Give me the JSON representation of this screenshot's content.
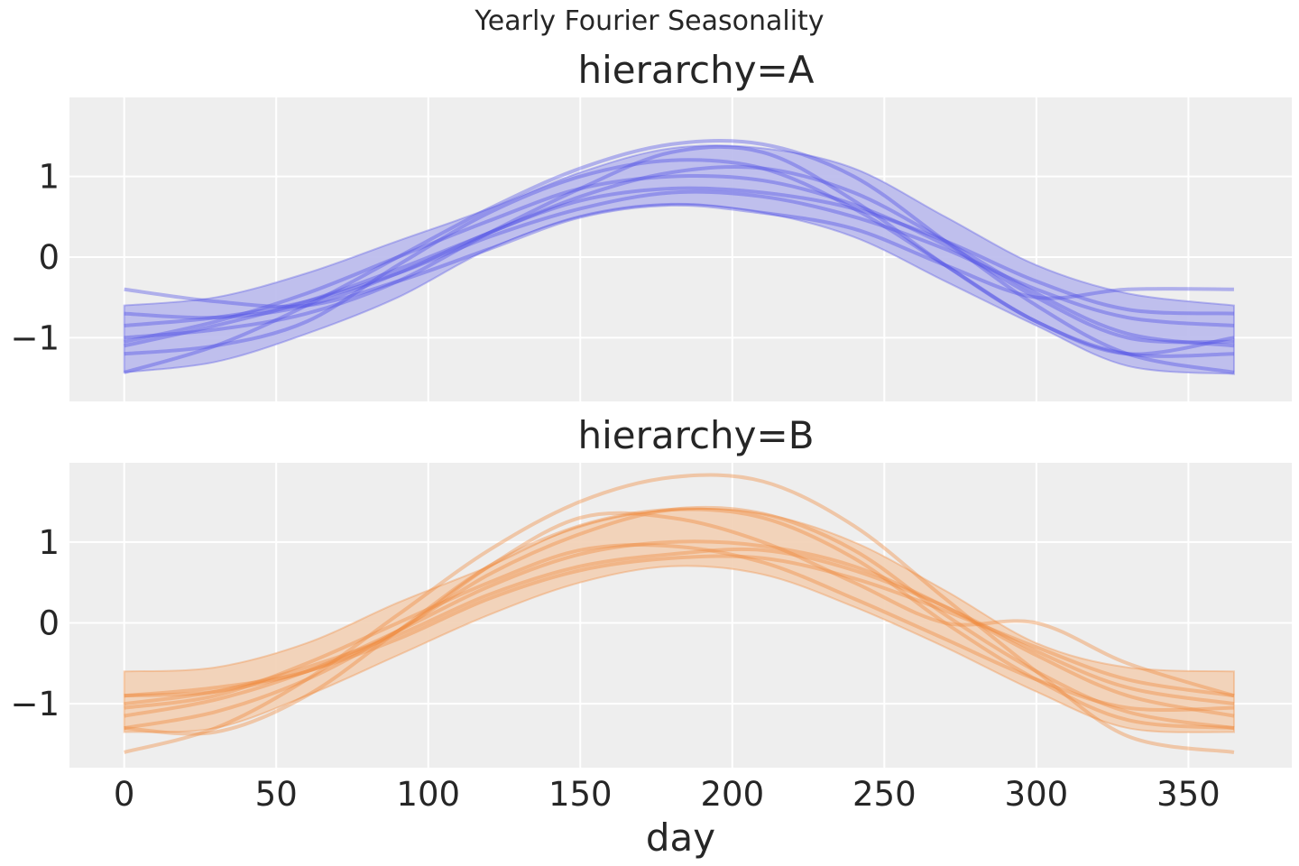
{
  "figure_title": "Yearly Fourier Seasonality",
  "chart_data": [
    {
      "type": "line",
      "title": "hierarchy=A",
      "xlabel": "",
      "ylabel": "",
      "xlim": [
        -18,
        384
      ],
      "ylim": [
        -1.79,
        1.98
      ],
      "xticks": [
        0,
        50,
        100,
        150,
        200,
        250,
        300,
        350
      ],
      "yticks": [
        -1,
        0,
        1
      ],
      "ytick_labels": [
        "−1",
        "0",
        "1"
      ],
      "grid": true,
      "color": "#4f4fe6",
      "band_color": "#b9b9ec",
      "x": [
        0,
        30,
        60,
        90,
        120,
        150,
        180,
        210,
        240,
        270,
        300,
        330,
        365
      ],
      "band": {
        "lower": [
          -1.43,
          -1.3,
          -0.95,
          -0.5,
          0.1,
          0.5,
          0.65,
          0.55,
          0.25,
          -0.3,
          -0.85,
          -1.35,
          -1.45
        ],
        "upper": [
          -0.6,
          -0.5,
          -0.2,
          0.2,
          0.6,
          1.05,
          1.35,
          1.35,
          1.1,
          0.5,
          -0.1,
          -0.45,
          -0.6
        ]
      },
      "series": [
        {
          "values": [
            -1.1,
            -0.85,
            -0.55,
            -0.15,
            0.3,
            0.75,
            1.05,
            1.1,
            0.8,
            0.2,
            -0.45,
            -0.95,
            -1.1
          ]
        },
        {
          "values": [
            -0.4,
            -0.55,
            -0.6,
            -0.3,
            0.1,
            0.5,
            0.65,
            0.55,
            0.35,
            -0.1,
            -0.5,
            -0.4,
            -0.4
          ]
        },
        {
          "values": [
            -1.43,
            -1.1,
            -0.6,
            0.0,
            0.6,
            1.1,
            1.4,
            1.4,
            1.0,
            0.2,
            -0.6,
            -1.2,
            -1.43
          ]
        },
        {
          "values": [
            -1.0,
            -0.9,
            -0.7,
            -0.3,
            0.3,
            0.85,
            1.3,
            1.3,
            0.7,
            -0.1,
            -0.8,
            -1.2,
            -1.0
          ]
        },
        {
          "values": [
            -0.7,
            -0.75,
            -0.6,
            -0.2,
            0.3,
            0.7,
            0.85,
            0.8,
            0.6,
            0.2,
            -0.3,
            -0.65,
            -0.7
          ]
        },
        {
          "values": [
            -1.2,
            -1.1,
            -0.8,
            -0.1,
            0.55,
            1.0,
            1.2,
            1.1,
            0.6,
            -0.1,
            -0.8,
            -1.2,
            -1.2
          ]
        },
        {
          "values": [
            -1.05,
            -0.8,
            -0.45,
            0.0,
            0.45,
            0.85,
            1.0,
            0.95,
            0.65,
            0.15,
            -0.5,
            -1.0,
            -1.05
          ]
        },
        {
          "values": [
            -0.85,
            -0.75,
            -0.55,
            -0.2,
            0.25,
            0.6,
            0.8,
            0.75,
            0.5,
            0.1,
            -0.4,
            -0.75,
            -0.85
          ]
        }
      ]
    },
    {
      "type": "line",
      "title": "hierarchy=B",
      "xlabel": "day",
      "ylabel": "",
      "xlim": [
        -18,
        384
      ],
      "ylim": [
        -1.79,
        1.98
      ],
      "xticks": [
        0,
        50,
        100,
        150,
        200,
        250,
        300,
        350
      ],
      "xtick_labels": [
        "0",
        "50",
        "100",
        "150",
        "200",
        "250",
        "300",
        "350"
      ],
      "yticks": [
        -1,
        0,
        1
      ],
      "ytick_labels": [
        "−1",
        "0",
        "1"
      ],
      "grid": true,
      "color": "#f08a3c",
      "band_color": "#f2cfb4",
      "x": [
        0,
        30,
        60,
        90,
        120,
        150,
        180,
        210,
        240,
        270,
        300,
        330,
        365
      ],
      "band": {
        "lower": [
          -1.35,
          -1.3,
          -0.9,
          -0.4,
          0.1,
          0.5,
          0.7,
          0.6,
          0.2,
          -0.3,
          -0.85,
          -1.3,
          -1.35
        ],
        "upper": [
          -0.6,
          -0.55,
          -0.25,
          0.25,
          0.7,
          1.2,
          1.4,
          1.35,
          1.0,
          0.4,
          -0.25,
          -0.55,
          -0.6
        ]
      },
      "series": [
        {
          "values": [
            -1.6,
            -1.3,
            -0.7,
            0.1,
            0.9,
            1.5,
            1.8,
            1.75,
            1.2,
            0.3,
            -0.6,
            -1.4,
            -1.6
          ]
        },
        {
          "values": [
            -0.9,
            -0.8,
            -0.6,
            -0.1,
            0.7,
            1.3,
            1.3,
            1.0,
            0.5,
            0.0,
            0.0,
            -0.5,
            -0.9
          ]
        },
        {
          "values": [
            -1.3,
            -1.35,
            -0.9,
            -0.1,
            0.7,
            1.2,
            1.4,
            1.3,
            0.8,
            0.0,
            -0.7,
            -1.2,
            -1.3
          ]
        },
        {
          "values": [
            -1.15,
            -0.95,
            -0.6,
            -0.1,
            0.45,
            0.85,
            1.0,
            0.95,
            0.7,
            0.2,
            -0.4,
            -0.9,
            -1.15
          ]
        },
        {
          "values": [
            -1.0,
            -0.85,
            -0.55,
            -0.15,
            0.35,
            0.7,
            0.85,
            0.9,
            0.65,
            0.2,
            -0.35,
            -0.8,
            -1.0
          ]
        },
        {
          "values": [
            -1.05,
            -0.9,
            -0.5,
            0.0,
            0.5,
            0.9,
            0.95,
            0.75,
            0.3,
            -0.2,
            -0.7,
            -1.05,
            -1.05
          ]
        },
        {
          "values": [
            -1.3,
            -1.1,
            -0.7,
            -0.1,
            0.6,
            1.1,
            1.4,
            1.35,
            0.9,
            0.1,
            -0.6,
            -1.1,
            -1.3
          ]
        },
        {
          "values": [
            -0.9,
            -0.85,
            -0.6,
            -0.2,
            0.3,
            0.65,
            0.8,
            0.8,
            0.55,
            0.15,
            -0.3,
            -0.7,
            -0.9
          ]
        }
      ]
    }
  ]
}
